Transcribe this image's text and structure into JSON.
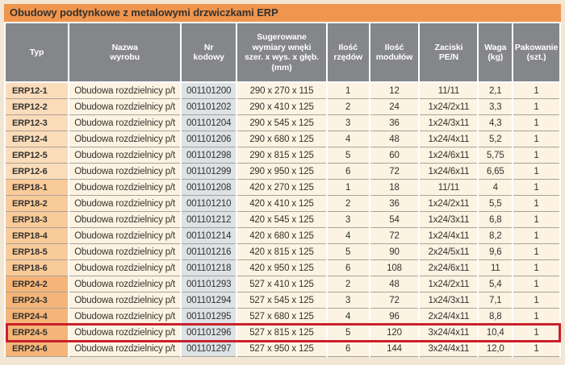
{
  "title": "Obudowy podtynkowe z metalowymi drzwiczkami ERP",
  "table": {
    "columns": [
      "Typ",
      "Nazwa\nwyrobu",
      "Nr\nkodowy",
      "Sugerowane\nwymiary wnęki\nszer. x wys. x głęb.\n(mm)",
      "Ilość\nrzędów",
      "Ilość\nmodułów",
      "Zaciski\nPE/N",
      "Waga\n(kg)",
      "Pakowanie\n(szt.)"
    ],
    "rows": [
      [
        "ERP12-1",
        "Obudowa rozdzielnicy p/t",
        "001101200",
        "290 x 270 x 115",
        "1",
        "12",
        "11/11",
        "2,1",
        "1"
      ],
      [
        "ERP12-2",
        "Obudowa rozdzielnicy p/t",
        "001101202",
        "290 x 410 x 125",
        "2",
        "24",
        "1x24/2x11",
        "3,3",
        "1"
      ],
      [
        "ERP12-3",
        "Obudowa rozdzielnicy p/t",
        "001101204",
        "290 x 545 x 125",
        "3",
        "36",
        "1x24/3x11",
        "4,3",
        "1"
      ],
      [
        "ERP12-4",
        "Obudowa rozdzielnicy p/t",
        "001101206",
        "290 x 680 x 125",
        "4",
        "48",
        "1x24/4x11",
        "5,2",
        "1"
      ],
      [
        "ERP12-5",
        "Obudowa rozdzielnicy p/t",
        "001101298",
        "290 x 815 x 125",
        "5",
        "60",
        "1x24/6x11",
        "5,75",
        "1"
      ],
      [
        "ERP12-6",
        "Obudowa rozdzielnicy p/t",
        "001101299",
        "290 x 950 x 125",
        "6",
        "72",
        "1x24/6x11",
        "6,65",
        "1"
      ],
      [
        "ERP18-1",
        "Obudowa rozdzielnicy p/t",
        "001101208",
        "420 x 270 x 125",
        "1",
        "18",
        "11/11",
        "4",
        "1"
      ],
      [
        "ERP18-2",
        "Obudowa rozdzielnicy p/t",
        "001101210",
        "420 x 410 x 125",
        "2",
        "36",
        "1x24/2x11",
        "5,5",
        "1"
      ],
      [
        "ERP18-3",
        "Obudowa rozdzielnicy p/t",
        "001101212",
        "420 x 545 x 125",
        "3",
        "54",
        "1x24/3x11",
        "6,8",
        "1"
      ],
      [
        "ERP18-4",
        "Obudowa rozdzielnicy p/t",
        "001101214",
        "420 x 680 x 125",
        "4",
        "72",
        "1x24/4x11",
        "8,2",
        "1"
      ],
      [
        "ERP18-5",
        "Obudowa rozdzielnicy p/t",
        "001101216",
        "420 x 815 x 125",
        "5",
        "90",
        "2x24/5x11",
        "9,6",
        "1"
      ],
      [
        "ERP18-6",
        "Obudowa rozdzielnicy p/t",
        "001101218",
        "420 x 950 x 125",
        "6",
        "108",
        "2x24/6x11",
        "11",
        "1"
      ],
      [
        "ERP24-2",
        "Obudowa rozdzielnicy p/t",
        "001101293",
        "527 x 410 x 125",
        "2",
        "48",
        "1x24/2x11",
        "5,4",
        "1"
      ],
      [
        "ERP24-3",
        "Obudowa rozdzielnicy p/t",
        "001101294",
        "527 x 545 x 125",
        "3",
        "72",
        "1x24/3x11",
        "7,1",
        "1"
      ],
      [
        "ERP24-4",
        "Obudowa rozdzielnicy p/t",
        "001101295",
        "527 x 680 x 125",
        "4",
        "96",
        "2x24/4x11",
        "8,8",
        "1"
      ],
      [
        "ERP24-5",
        "Obudowa rozdzielnicy p/t",
        "001101296",
        "527 x 815 x 125",
        "5",
        "120",
        "3x24/4x11",
        "10,4",
        "1"
      ],
      [
        "ERP24-6",
        "Obudowa rozdzielnicy p/t",
        "001101297",
        "527 x 950 x 125",
        "6",
        "144",
        "3x24/4x11",
        "12,0",
        "1"
      ]
    ],
    "highlighted_typ": "ERP24-5"
  },
  "colors": {
    "page_bg": "#f2e6d4",
    "title_bar_bg": "#f0954d",
    "header_bg": "#85868a",
    "header_text": "#ffffff",
    "row_bg": "#fdf3e2",
    "code_col_bg": "#dde2e5",
    "typ_erp12_bg": "#fbdcba",
    "typ_erp18_bg": "#f9cb98",
    "typ_erp24_bg": "#f5b578",
    "row_line": "#a9a29a",
    "text_dark": "#34322f",
    "highlight_border": "#c9202b"
  }
}
